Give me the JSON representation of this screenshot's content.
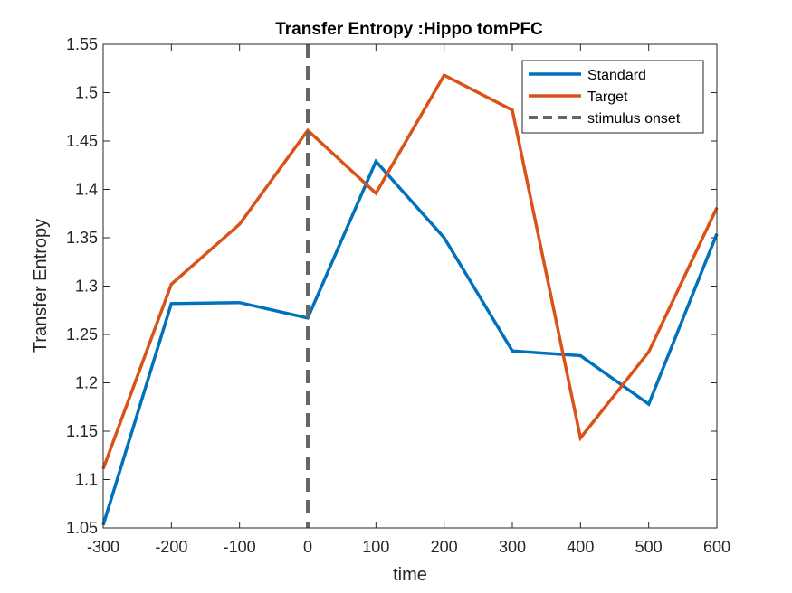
{
  "chart_data": {
    "type": "line",
    "title": "Transfer Entropy :Hippo tomPFC",
    "xlabel": "time",
    "ylabel": "Transfer Entropy",
    "xlim": [
      -300,
      600
    ],
    "ylim": [
      1.05,
      1.55
    ],
    "x_ticks": [
      -300,
      -200,
      -100,
      0,
      100,
      200,
      300,
      400,
      500,
      600
    ],
    "y_ticks": [
      1.05,
      1.1,
      1.15,
      1.2,
      1.25,
      1.3,
      1.35,
      1.4,
      1.45,
      1.5,
      1.55
    ],
    "x_tick_labels": [
      "-300",
      "-200",
      "-100",
      "0",
      "100",
      "200",
      "300",
      "400",
      "500",
      "600"
    ],
    "y_tick_labels": [
      "1.05",
      "1.1",
      "1.15",
      "1.2",
      "1.25",
      "1.3",
      "1.35",
      "1.4",
      "1.45",
      "1.5",
      "1.55"
    ],
    "x": [
      -300,
      -200,
      -100,
      0,
      100,
      200,
      300,
      400,
      500,
      600
    ],
    "series": [
      {
        "name": "Standard",
        "color": "#0072BD",
        "values": [
          1.053,
          1.282,
          1.283,
          1.267,
          1.429,
          1.35,
          1.233,
          1.228,
          1.178,
          1.354
        ]
      },
      {
        "name": "Target",
        "color": "#D95319",
        "values": [
          1.111,
          1.302,
          1.364,
          1.461,
          1.396,
          1.518,
          1.482,
          1.143,
          1.232,
          1.381
        ]
      }
    ],
    "vline": {
      "name": "stimulus onset",
      "x": 0,
      "color": "#666666",
      "style": "dashed"
    },
    "legend_position": "top-right",
    "grid": false
  }
}
